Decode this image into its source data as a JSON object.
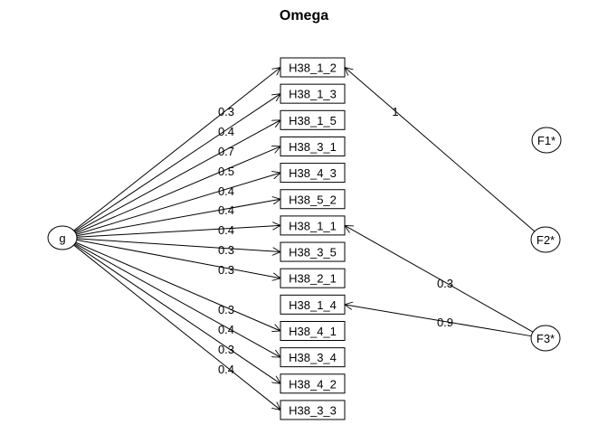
{
  "title": "Omega",
  "general_factor": "g",
  "group_factors": [
    "F1*",
    "F2*",
    "F3*"
  ],
  "items": [
    "H38_1_2",
    "H38_1_3",
    "H38_1_5",
    "H38_3_1",
    "H38_4_3",
    "H38_5_2",
    "H38_1_1",
    "H38_3_5",
    "H38_2_1",
    "H38_1_4",
    "H38_4_1",
    "H38_3_4",
    "H38_4_2",
    "H38_3_3"
  ],
  "g_loadings": [
    {
      "item": "H38_1_2",
      "label": "0.3"
    },
    {
      "item": "H38_1_3",
      "label": "0.4"
    },
    {
      "item": "H38_1_5",
      "label": "0.7"
    },
    {
      "item": "H38_3_1",
      "label": "0.5"
    },
    {
      "item": "H38_4_3",
      "label": "0.4"
    },
    {
      "item": "H38_5_2",
      "label": "0.4"
    },
    {
      "item": "H38_1_1",
      "label": "0.4"
    },
    {
      "item": "H38_3_5",
      "label": "0.3"
    },
    {
      "item": "H38_2_1",
      "label": "0.3"
    },
    {
      "item": "H38_4_1",
      "label": "0.3"
    },
    {
      "item": "H38_3_4",
      "label": "0.4"
    },
    {
      "item": "H38_4_2",
      "label": "0.3"
    },
    {
      "item": "H38_3_3",
      "label": "0.4"
    }
  ],
  "group_loadings": [
    {
      "factor": "F2*",
      "item": "H38_1_2",
      "label": "1"
    },
    {
      "factor": "F3*",
      "item": "H38_1_1",
      "label": "0.3"
    },
    {
      "factor": "F3*",
      "item": "H38_1_4",
      "label": "0.9"
    }
  ]
}
